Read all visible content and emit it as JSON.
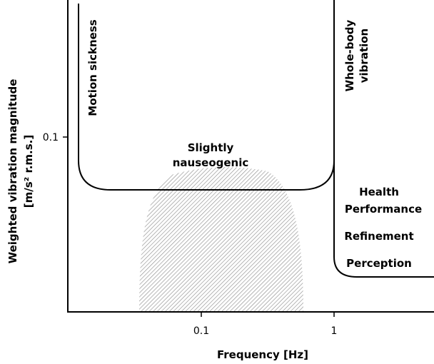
{
  "axes": {
    "x_label": "Frequency [Hz]",
    "y_label": [
      "Weighted vibration magnitude",
      "[m/s² r.m.s.]"
    ],
    "x_ticks": [
      "0.1",
      "1"
    ],
    "y_ticks": [
      "0.1"
    ]
  },
  "regions": {
    "motion_sickness": "Motion sickness",
    "whole_body": [
      "Whole-body",
      "vibration"
    ],
    "nauseogenic": [
      "Slightly",
      "nauseogenic"
    ],
    "levels": [
      "Health",
      "Performance",
      "Refinement",
      "Perception"
    ]
  }
}
